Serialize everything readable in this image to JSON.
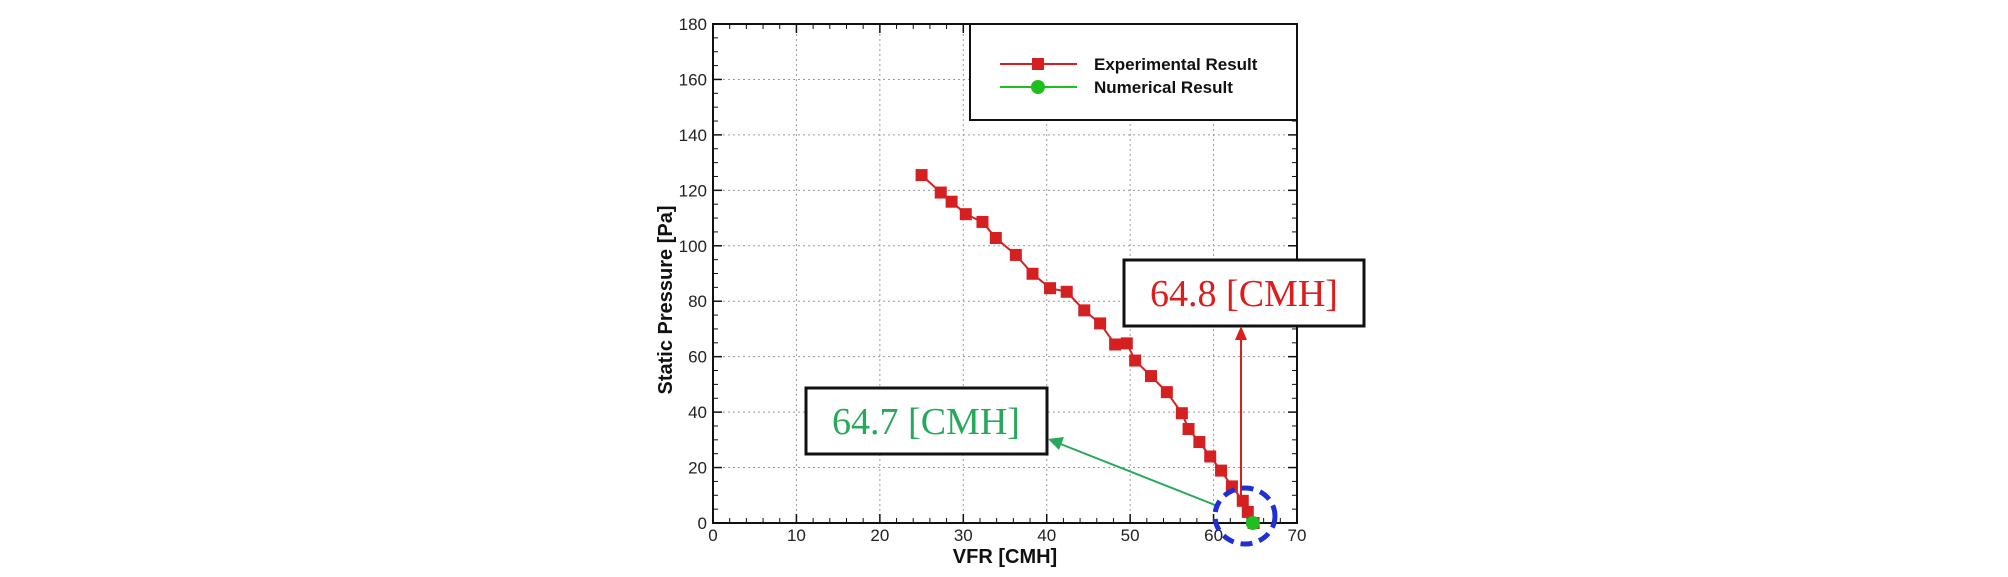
{
  "chart_data": {
    "type": "line",
    "title": "",
    "xlabel": "VFR [CMH]",
    "ylabel": "Static Pressure [Pa]",
    "xlim": [
      0,
      70
    ],
    "ylim": [
      0,
      180
    ],
    "xticks": [
      0,
      10,
      20,
      30,
      40,
      50,
      60,
      70
    ],
    "yticks": [
      0,
      20,
      40,
      60,
      80,
      100,
      120,
      140,
      160,
      180
    ],
    "grid": true,
    "legend_position": "top-right",
    "series": [
      {
        "name": "Experimental Result",
        "color": "#d42020",
        "marker": "square",
        "x": [
          25.0,
          27.3,
          28.6,
          30.3,
          32.3,
          33.9,
          36.3,
          38.3,
          40.4,
          42.4,
          44.5,
          46.4,
          48.2,
          49.6,
          50.6,
          52.5,
          54.4,
          56.2,
          57.0,
          58.3,
          59.6,
          60.9,
          62.2,
          63.5,
          64.1,
          64.8
        ],
        "y": [
          125.5,
          119.2,
          115.9,
          111.4,
          108.6,
          102.8,
          96.7,
          89.9,
          84.7,
          83.4,
          76.7,
          72.0,
          64.4,
          64.8,
          58.6,
          53.0,
          47.2,
          39.6,
          33.9,
          29.2,
          24.0,
          18.9,
          13.2,
          8.0,
          4.0,
          0.0
        ]
      },
      {
        "name": "Numerical Result",
        "color": "#1fbf1f",
        "marker": "circle",
        "x": [
          64.7
        ],
        "y": [
          0.0
        ]
      }
    ],
    "annotations": [
      {
        "text": "64.8 [CMH]",
        "color": "#dd1c1c",
        "target_x": 63.4,
        "target_y": 0
      },
      {
        "text": "64.7 [CMH]",
        "color": "#27a85a",
        "target_x": 64.7,
        "target_y": 0
      }
    ],
    "highlight_circle_color": "#1e2fd6"
  }
}
